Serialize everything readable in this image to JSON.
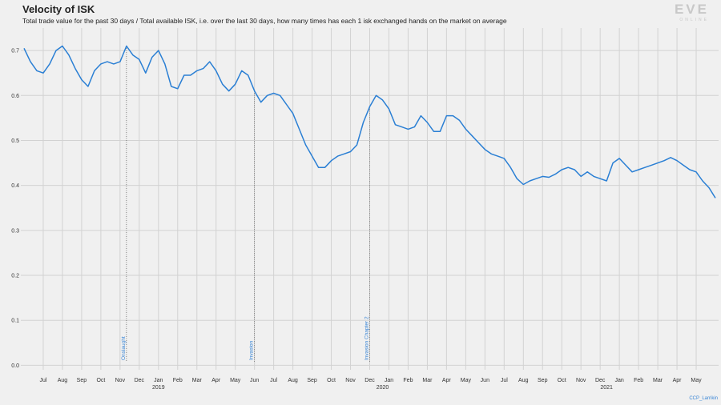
{
  "chart_data": {
    "type": "line",
    "title": "Velocity of ISK",
    "subtitle": "Total trade value for the past 30 days / Total available ISK, i.e. over the last 30 days, how many times has each 1 isk exchanged hands on the market on average",
    "brand": "EVE",
    "brand_sub": "ONLINE",
    "credit": "CCP_Larrikin",
    "categories": [
      null,
      null,
      null,
      "Jul",
      null,
      null,
      "Aug",
      null,
      null,
      "Sep",
      null,
      null,
      "Oct",
      null,
      null,
      "Nov",
      null,
      null,
      "Dec",
      null,
      null,
      "Jan",
      null,
      null,
      "Feb",
      null,
      null,
      "Mar",
      null,
      null,
      "Apr",
      null,
      null,
      "May",
      null,
      null,
      "Jun",
      null,
      null,
      "Jul",
      null,
      null,
      "Aug",
      null,
      null,
      "Sep",
      null,
      null,
      "Oct",
      null,
      null,
      "Nov",
      null,
      null,
      "Dec",
      null,
      null,
      "Jan",
      null,
      null,
      "Feb",
      null,
      null,
      "Mar",
      null,
      null,
      "Apr",
      null,
      null,
      "May",
      null,
      null,
      "Jun",
      null,
      null,
      "Jul",
      null,
      null,
      "Aug",
      null,
      null,
      "Sep",
      null,
      null,
      "Oct",
      null,
      null,
      "Nov",
      null,
      null,
      "Dec",
      null,
      null,
      "Jan",
      null,
      null,
      "Feb",
      null,
      null,
      "Mar",
      null,
      null,
      "Apr",
      null,
      null,
      "May",
      null,
      null,
      null
    ],
    "year_labels": [
      null,
      null,
      null,
      null,
      null,
      null,
      null,
      null,
      null,
      null,
      null,
      null,
      null,
      null,
      null,
      null,
      null,
      null,
      null,
      null,
      null,
      "2019",
      null,
      null,
      null,
      null,
      null,
      null,
      null,
      null,
      null,
      null,
      null,
      null,
      null,
      null,
      null,
      null,
      null,
      null,
      null,
      null,
      null,
      null,
      null,
      null,
      null,
      null,
      null,
      null,
      null,
      null,
      null,
      null,
      null,
      null,
      "2020",
      null,
      null,
      null,
      null,
      null,
      null,
      null,
      null,
      null,
      null,
      null,
      null,
      null,
      null,
      null,
      null,
      null,
      null,
      null,
      null,
      null,
      null,
      null,
      null,
      null,
      null,
      null,
      null,
      null,
      null,
      null,
      null,
      null,
      null,
      "2021",
      null,
      null,
      null,
      null,
      null,
      null,
      null,
      null,
      null,
      null,
      null,
      null,
      null,
      null,
      null
    ],
    "series": [
      {
        "name": "Velocity of ISK",
        "color": "#2a7fd4",
        "values": [
          0.705,
          0.675,
          0.655,
          0.65,
          0.67,
          0.7,
          0.71,
          0.69,
          0.66,
          0.635,
          0.62,
          0.655,
          0.67,
          0.675,
          0.67,
          0.675,
          0.71,
          0.69,
          0.68,
          0.65,
          0.685,
          0.7,
          0.67,
          0.62,
          0.615,
          0.645,
          0.645,
          0.655,
          0.66,
          0.675,
          0.655,
          0.625,
          0.61,
          0.625,
          0.655,
          0.645,
          0.61,
          0.585,
          0.6,
          0.605,
          0.6,
          0.58,
          0.56,
          0.525,
          0.49,
          0.465,
          0.44,
          0.44,
          0.455,
          0.465,
          0.47,
          0.475,
          0.49,
          0.54,
          0.575,
          0.6,
          0.59,
          0.57,
          0.535,
          0.53,
          0.525,
          0.53,
          0.555,
          0.54,
          0.52,
          0.52,
          0.555,
          0.555,
          0.545,
          0.525,
          0.51,
          0.495,
          0.48,
          0.47,
          0.465,
          0.46,
          0.44,
          0.415,
          0.402,
          0.41,
          0.415,
          0.42,
          0.418,
          0.425,
          0.435,
          0.44,
          0.435,
          0.42,
          0.43,
          0.42,
          0.415,
          0.41,
          0.45,
          0.46,
          0.445,
          0.43,
          0.435,
          0.44,
          0.445,
          0.45,
          0.455,
          0.462,
          0.455,
          0.445,
          0.435,
          0.43,
          0.41,
          0.395,
          0.372
        ]
      }
    ],
    "annotations": [
      {
        "label": "Onslaught",
        "category_index": 16
      },
      {
        "label": "Invasion",
        "category_index": 36
      },
      {
        "label": "Invasion Chapter 2",
        "category_index": 54
      }
    ],
    "ylim": [
      -0.01,
      0.75
    ],
    "yticks": [
      {
        "value": 0,
        "label": "0.0"
      },
      0.1,
      0.2,
      0.3,
      0.4,
      0.5,
      0.6,
      0.7
    ],
    "grid": true
  }
}
